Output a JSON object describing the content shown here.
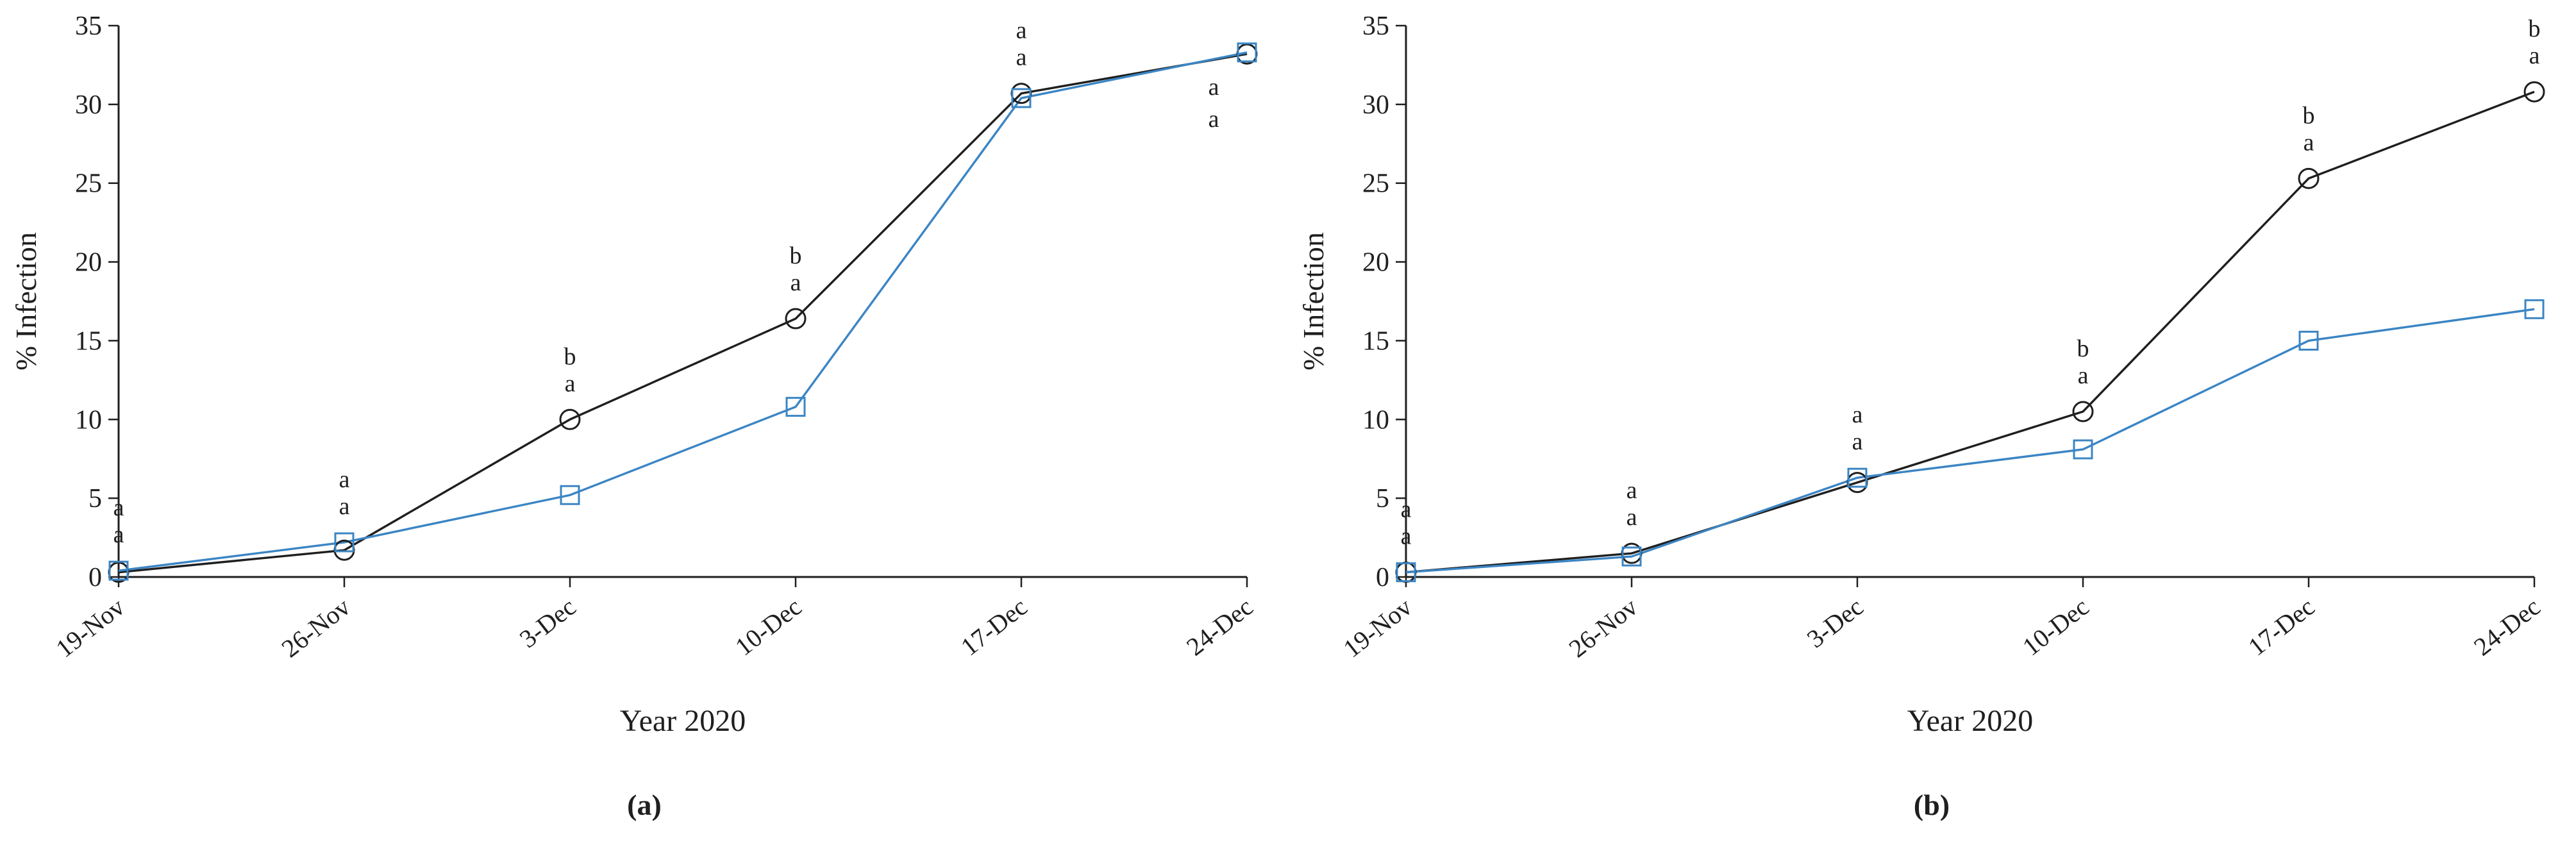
{
  "figure": {
    "background": "#ffffff",
    "captions": [
      "(a)",
      "(b)"
    ]
  },
  "style": {
    "axis_color": "#1f1f1f",
    "text_color": "#1f1f1f",
    "circle_series_color": "#1f1f1f",
    "square_series_color": "#3b85c4"
  },
  "chart_data": [
    {
      "type": "line",
      "panel": "a",
      "title": "",
      "xlabel": "Year 2020",
      "ylabel": "% Infection",
      "ylim": [
        0,
        35
      ],
      "ytick_step": 5,
      "grid": false,
      "legend": "none",
      "categories": [
        "19-Nov",
        "26-Nov",
        "3-Dec",
        "10-Dec",
        "17-Dec",
        "24-Dec"
      ],
      "series": [
        {
          "name": "circle-black",
          "marker": "circle",
          "color": "#1f1f1f",
          "values": [
            0.3,
            1.7,
            10.0,
            16.4,
            30.7,
            33.2
          ],
          "letters": [
            "a",
            "a",
            "b",
            "b",
            "a",
            "a"
          ]
        },
        {
          "name": "square-blue",
          "marker": "square",
          "color": "#3b85c4",
          "values": [
            0.4,
            2.2,
            5.2,
            10.8,
            30.4,
            33.3
          ],
          "letters": [
            "a",
            "a",
            "a",
            "a",
            "a",
            "a"
          ]
        }
      ]
    },
    {
      "type": "line",
      "panel": "b",
      "title": "",
      "xlabel": "Year 2020",
      "ylabel": "% Infection",
      "ylim": [
        0,
        35
      ],
      "ytick_step": 5,
      "grid": false,
      "legend": "none",
      "categories": [
        "19-Nov",
        "26-Nov",
        "3-Dec",
        "10-Dec",
        "17-Dec",
        "24-Dec"
      ],
      "series": [
        {
          "name": "circle-black",
          "marker": "circle",
          "color": "#1f1f1f",
          "values": [
            0.3,
            1.5,
            6.0,
            10.5,
            25.3,
            30.8
          ],
          "letters": [
            "a",
            "a",
            "a",
            "b",
            "b",
            "b"
          ]
        },
        {
          "name": "square-blue",
          "marker": "square",
          "color": "#3b85c4",
          "values": [
            0.3,
            1.3,
            6.3,
            8.1,
            15.0,
            17.0
          ],
          "letters": [
            "a",
            "a",
            "a",
            "a",
            "a",
            "a"
          ]
        }
      ]
    }
  ]
}
